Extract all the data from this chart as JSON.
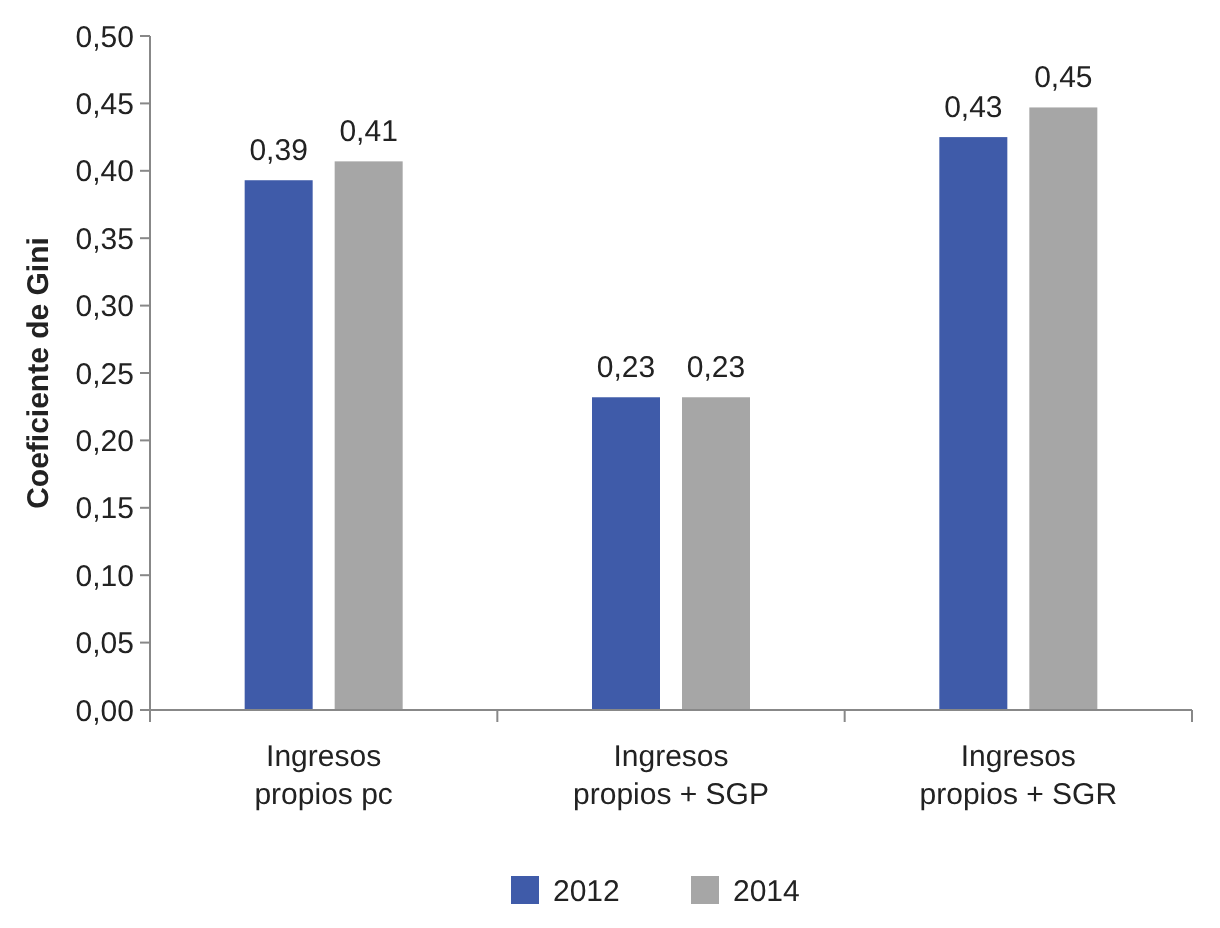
{
  "chart_data": {
    "type": "bar",
    "ylabel": "Coeficiente de Gini",
    "categories": [
      "Ingresos propios pc",
      "Ingresos propios + SGP",
      "Ingresos propios + SGR"
    ],
    "series": [
      {
        "name": "2012",
        "color": "#3f5ba9",
        "values": [
          0.393,
          0.232,
          0.425
        ],
        "value_labels": [
          "0,39",
          "0,23",
          "0,43"
        ]
      },
      {
        "name": "2014",
        "color": "#a6a6a6",
        "values": [
          0.407,
          0.232,
          0.447
        ],
        "value_labels": [
          "0,41",
          "0,23",
          "0,45"
        ]
      }
    ],
    "ylim": [
      0,
      0.5
    ],
    "yticks": [
      {
        "value": 0,
        "label": "0,00"
      },
      {
        "value": 0.05,
        "label": "0,05"
      },
      {
        "value": 0.1,
        "label": "0,10"
      },
      {
        "value": 0.15,
        "label": "0,15"
      },
      {
        "value": 0.2,
        "label": "0,20"
      },
      {
        "value": 0.25,
        "label": "0,25"
      },
      {
        "value": 0.3,
        "label": "0,30"
      },
      {
        "value": 0.35,
        "label": "0,35"
      },
      {
        "value": 0.4,
        "label": "0,40"
      },
      {
        "value": 0.45,
        "label": "0,45"
      },
      {
        "value": 0.5,
        "label": "0,50"
      }
    ],
    "legend": "bottom",
    "grid": false
  }
}
